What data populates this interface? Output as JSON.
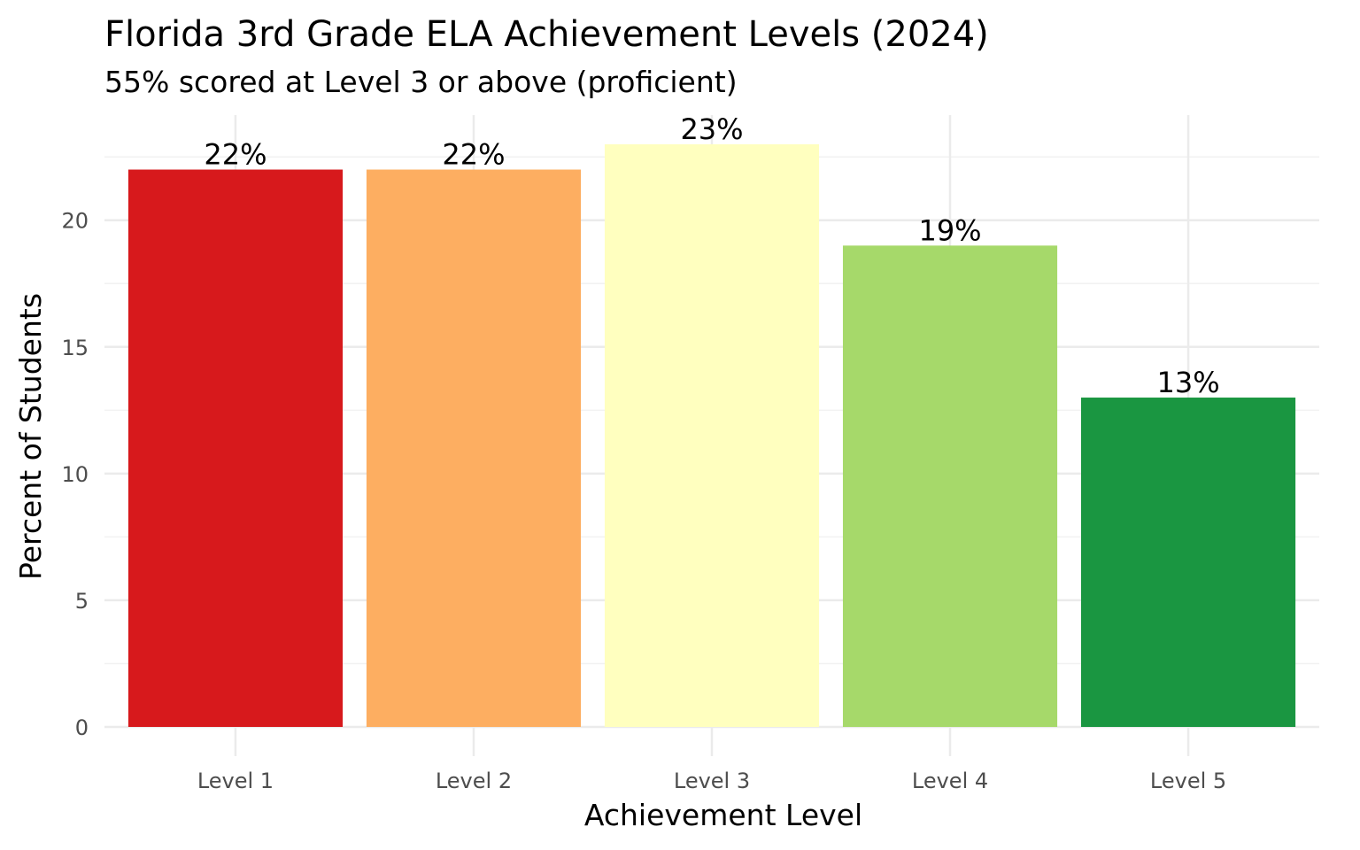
{
  "chart_data": {
    "type": "bar",
    "title": "Florida 3rd Grade ELA Achievement Levels (2024)",
    "subtitle": "55% scored at Level 3 or above (proficient)",
    "xlabel": "Achievement Level",
    "ylabel": "Percent of Students",
    "categories": [
      "Level 1",
      "Level 2",
      "Level 3",
      "Level 4",
      "Level 5"
    ],
    "values": [
      22,
      22,
      23,
      19,
      13
    ],
    "data_labels": [
      "22%",
      "22%",
      "23%",
      "19%",
      "13%"
    ],
    "colors": [
      "#d7191c",
      "#fdae61",
      "#ffffbf",
      "#a6d96a",
      "#1a9641"
    ],
    "y_ticks": [
      0,
      5,
      10,
      15,
      20
    ],
    "y_tick_labels": [
      "0",
      "5",
      "10",
      "15",
      "20"
    ],
    "ylim": [
      0,
      24.15
    ],
    "grid": true,
    "legend": "none"
  }
}
